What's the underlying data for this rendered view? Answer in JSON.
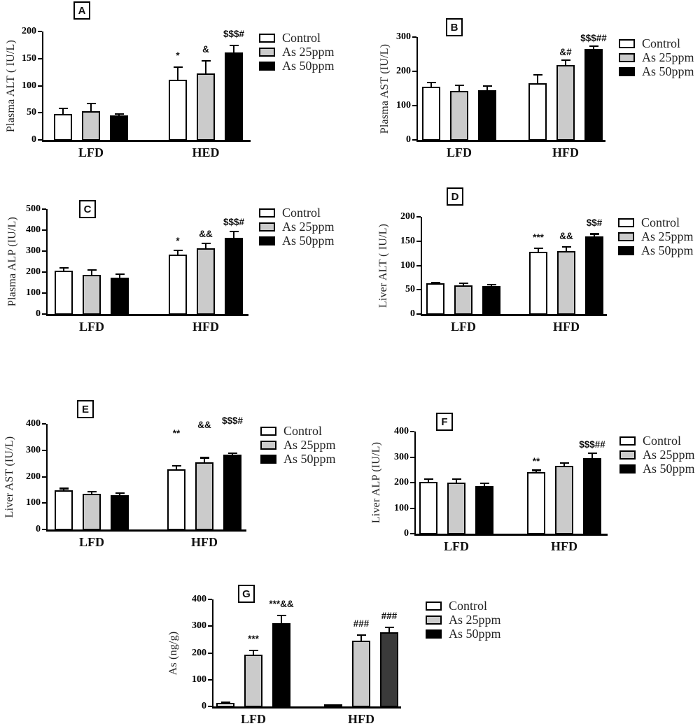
{
  "figure": {
    "background": "#ffffff",
    "series_names": [
      "Control",
      "As 25ppm",
      "As 50ppm"
    ],
    "series_colors": [
      "#ffffff",
      "#cbcbcb",
      "#000000"
    ]
  },
  "chart_data": [
    {
      "type": "bar",
      "panel": "A",
      "ylabel": "Plasma ALT ( IU/L)",
      "ylim": [
        0,
        200
      ],
      "yticks": [
        0,
        50,
        100,
        150,
        200
      ],
      "categories": [
        "LFD",
        "HED"
      ],
      "series": [
        {
          "name": "Control",
          "color": "#ffffff",
          "values": [
            48,
            111
          ],
          "errors": [
            10,
            23
          ]
        },
        {
          "name": "As 25ppm",
          "color": "#cbcbcb",
          "values": [
            53,
            123
          ],
          "errors": [
            14,
            23
          ]
        },
        {
          "name": "As 50ppm",
          "color": "#000000",
          "values": [
            45,
            161
          ],
          "errors": [
            3,
            13
          ]
        }
      ],
      "annotations": [
        {
          "group": 1,
          "series": 0,
          "text": "*"
        },
        {
          "group": 1,
          "series": 1,
          "text": "&"
        },
        {
          "group": 1,
          "series": 2,
          "text": "$$$#"
        }
      ],
      "legend": {
        "position": "right",
        "labels": [
          "Control",
          "As 25ppm",
          "As 50ppm"
        ]
      }
    },
    {
      "type": "bar",
      "panel": "B",
      "ylabel": "Plasma AST (IU/L)",
      "ylim": [
        0,
        300
      ],
      "yticks": [
        0,
        100,
        200,
        300
      ],
      "categories": [
        "LFD",
        "HFD"
      ],
      "series": [
        {
          "name": "Control",
          "color": "#ffffff",
          "values": [
            155,
            165
          ],
          "errors": [
            13,
            25
          ]
        },
        {
          "name": "As 25ppm",
          "color": "#cbcbcb",
          "values": [
            143,
            218
          ],
          "errors": [
            17,
            15
          ]
        },
        {
          "name": "As 50ppm",
          "color": "#000000",
          "values": [
            144,
            265
          ],
          "errors": [
            14,
            9
          ]
        }
      ],
      "annotations": [
        {
          "group": 1,
          "series": 1,
          "text": "&#"
        },
        {
          "group": 1,
          "series": 2,
          "text": "$$$##"
        }
      ],
      "legend": {
        "position": "right",
        "labels": [
          "Control",
          "As 25ppm",
          "As 50ppm"
        ]
      }
    },
    {
      "type": "bar",
      "panel": "C",
      "ylabel": "Plasma ALP (IU/L)",
      "ylim": [
        0,
        500
      ],
      "yticks": [
        0,
        100,
        200,
        300,
        400,
        500
      ],
      "categories": [
        "LFD",
        "HFD"
      ],
      "series": [
        {
          "name": "Control",
          "color": "#ffffff",
          "values": [
            207,
            282
          ],
          "errors": [
            13,
            21
          ]
        },
        {
          "name": "As 25ppm",
          "color": "#cbcbcb",
          "values": [
            186,
            313
          ],
          "errors": [
            24,
            25
          ]
        },
        {
          "name": "As 50ppm",
          "color": "#000000",
          "values": [
            173,
            362
          ],
          "errors": [
            17,
            31
          ]
        }
      ],
      "annotations": [
        {
          "group": 1,
          "series": 0,
          "text": "*"
        },
        {
          "group": 1,
          "series": 1,
          "text": "&&"
        },
        {
          "group": 1,
          "series": 2,
          "text": "$$$#"
        }
      ],
      "legend": {
        "position": "right",
        "labels": [
          "Control",
          "As 25ppm",
          "As 50ppm"
        ]
      }
    },
    {
      "type": "bar",
      "panel": "D",
      "ylabel": "Liver ALT ( IU/L)",
      "ylim": [
        0,
        200
      ],
      "yticks": [
        0,
        50,
        100,
        150,
        200
      ],
      "categories": [
        "LFD",
        "HFD"
      ],
      "series": [
        {
          "name": "Control",
          "color": "#ffffff",
          "values": [
            63,
            128
          ],
          "errors": [
            2,
            7
          ]
        },
        {
          "name": "As 25ppm",
          "color": "#cbcbcb",
          "values": [
            59,
            130
          ],
          "errors": [
            4,
            8
          ]
        },
        {
          "name": "As 50ppm",
          "color": "#000000",
          "values": [
            57,
            160
          ],
          "errors": [
            3,
            5
          ]
        }
      ],
      "annotations": [
        {
          "group": 1,
          "series": 0,
          "text": "***"
        },
        {
          "group": 1,
          "series": 1,
          "text": "&&"
        },
        {
          "group": 1,
          "series": 2,
          "text": "$$#"
        }
      ],
      "legend": {
        "position": "right",
        "labels": [
          "Control",
          "As 25ppm",
          "As 50ppm"
        ]
      }
    },
    {
      "type": "bar",
      "panel": "E",
      "ylabel": "Liver AST (IU/L)",
      "ylim": [
        0,
        400
      ],
      "yticks": [
        0,
        100,
        200,
        300,
        400
      ],
      "categories": [
        "LFD",
        "HFD"
      ],
      "series": [
        {
          "name": "Control",
          "color": "#ffffff",
          "values": [
            148,
            227
          ],
          "errors": [
            7,
            14
          ]
        },
        {
          "name": "As 25ppm",
          "color": "#cbcbcb",
          "values": [
            136,
            254
          ],
          "errors": [
            7,
            18
          ]
        },
        {
          "name": "As 50ppm",
          "color": "#000000",
          "values": [
            131,
            283
          ],
          "errors": [
            6,
            5
          ]
        }
      ],
      "annotations": [
        {
          "group": 1,
          "series": 0,
          "text": "**"
        },
        {
          "group": 1,
          "series": 1,
          "text": "&&"
        },
        {
          "group": 1,
          "series": 2,
          "text": "$$$#"
        }
      ],
      "legend": {
        "position": "right",
        "labels": [
          "Control",
          "As 25ppm",
          "As 50ppm"
        ]
      }
    },
    {
      "type": "bar",
      "panel": "F",
      "ylabel": "Liver ALP (IU/L)",
      "ylim": [
        0,
        400
      ],
      "yticks": [
        0,
        100,
        200,
        300,
        400
      ],
      "categories": [
        "LFD",
        "HFD"
      ],
      "series": [
        {
          "name": "Control",
          "color": "#ffffff",
          "values": [
            204,
            241
          ],
          "errors": [
            10,
            7
          ]
        },
        {
          "name": "As 25ppm",
          "color": "#cbcbcb",
          "values": [
            200,
            265
          ],
          "errors": [
            15,
            13
          ]
        },
        {
          "name": "As 50ppm",
          "color": "#000000",
          "values": [
            186,
            296
          ],
          "errors": [
            11,
            19
          ]
        }
      ],
      "annotations": [
        {
          "group": 1,
          "series": 0,
          "text": "**"
        },
        {
          "group": 1,
          "series": 2,
          "text": "$$$##"
        }
      ],
      "legend": {
        "position": "right",
        "labels": [
          "Control",
          "As 25ppm",
          "As 50ppm"
        ]
      }
    },
    {
      "type": "bar",
      "panel": "G",
      "ylabel": "As (ng/g)",
      "ylim": [
        0,
        400
      ],
      "yticks": [
        0,
        100,
        200,
        300,
        400
      ],
      "categories": [
        "LFD",
        "HFD"
      ],
      "series": [
        {
          "name": "Control",
          "color": "#ffffff",
          "values": [
            13,
            9
          ],
          "errors": [
            3,
            0
          ]
        },
        {
          "name": "As 25ppm",
          "color": "#cbcbcb",
          "values": [
            193,
            245
          ],
          "errors": [
            17,
            22
          ]
        },
        {
          "name": "As 50ppm",
          "color": "#000000",
          "values": [
            310,
            277
          ],
          "errors": [
            30,
            18
          ]
        }
      ],
      "color_overrides": [
        {
          "group": 1,
          "series": 2,
          "color": "#3a3a3a"
        }
      ],
      "annotations": [
        {
          "group": 0,
          "series": 1,
          "text": "***"
        },
        {
          "group": 0,
          "series": 2,
          "text": "***&&"
        },
        {
          "group": 1,
          "series": 1,
          "text": "###"
        },
        {
          "group": 1,
          "series": 2,
          "text": "###"
        }
      ],
      "legend": {
        "position": "right",
        "labels": [
          "Control",
          "As 25ppm",
          "As 50ppm"
        ]
      }
    }
  ]
}
